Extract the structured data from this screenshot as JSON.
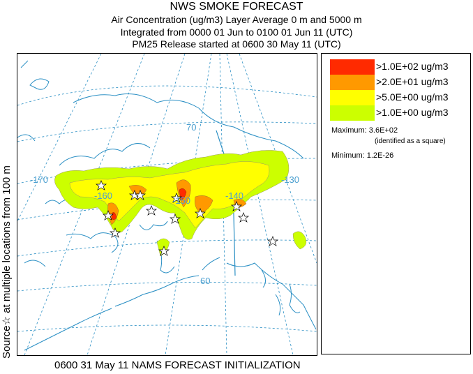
{
  "header": {
    "title": "NWS SMOKE FORECAST",
    "line1": "Air Concentration (ug/m3) Layer Average    0 m and  5000 m",
    "line2": "Integrated from 0000 01 Jun to 0100 01 Jun 11 (UTC)",
    "line3": "PM25 Release started at 0600 30 May 11 (UTC)"
  },
  "sidebar": {
    "text": "Source☆ at multiple locations    from   100 m"
  },
  "footer": {
    "text": "0600 31 May 11 NAMS FORECAST INITIALIZATION"
  },
  "legend": {
    "items": [
      {
        "label": ">1.0E+02 ug/m3",
        "color": "#ff2a00"
      },
      {
        "label": ">2.0E+01 ug/m3",
        "color": "#ff9900"
      },
      {
        "label": ">5.0E+00 ug/m3",
        "color": "#ffff00"
      },
      {
        "label": ">1.0E+00 ug/m3",
        "color": "#ccff00"
      }
    ],
    "maximum": "Maximum: 3.6E+02",
    "maximum_note": "(identified as a square)",
    "minimum": "Minimum: 1.2E-26"
  },
  "map": {
    "graticule_labels": [
      {
        "text": "-170"
      },
      {
        "text": "-160"
      },
      {
        "text": "-150"
      },
      {
        "text": "-140"
      },
      {
        "text": "-130"
      },
      {
        "text": "70"
      },
      {
        "text": "60"
      }
    ],
    "colors": {
      "coast": "#2a8fc4",
      "grid": "#2a8fc4",
      "label": "#4a9fd0"
    }
  }
}
